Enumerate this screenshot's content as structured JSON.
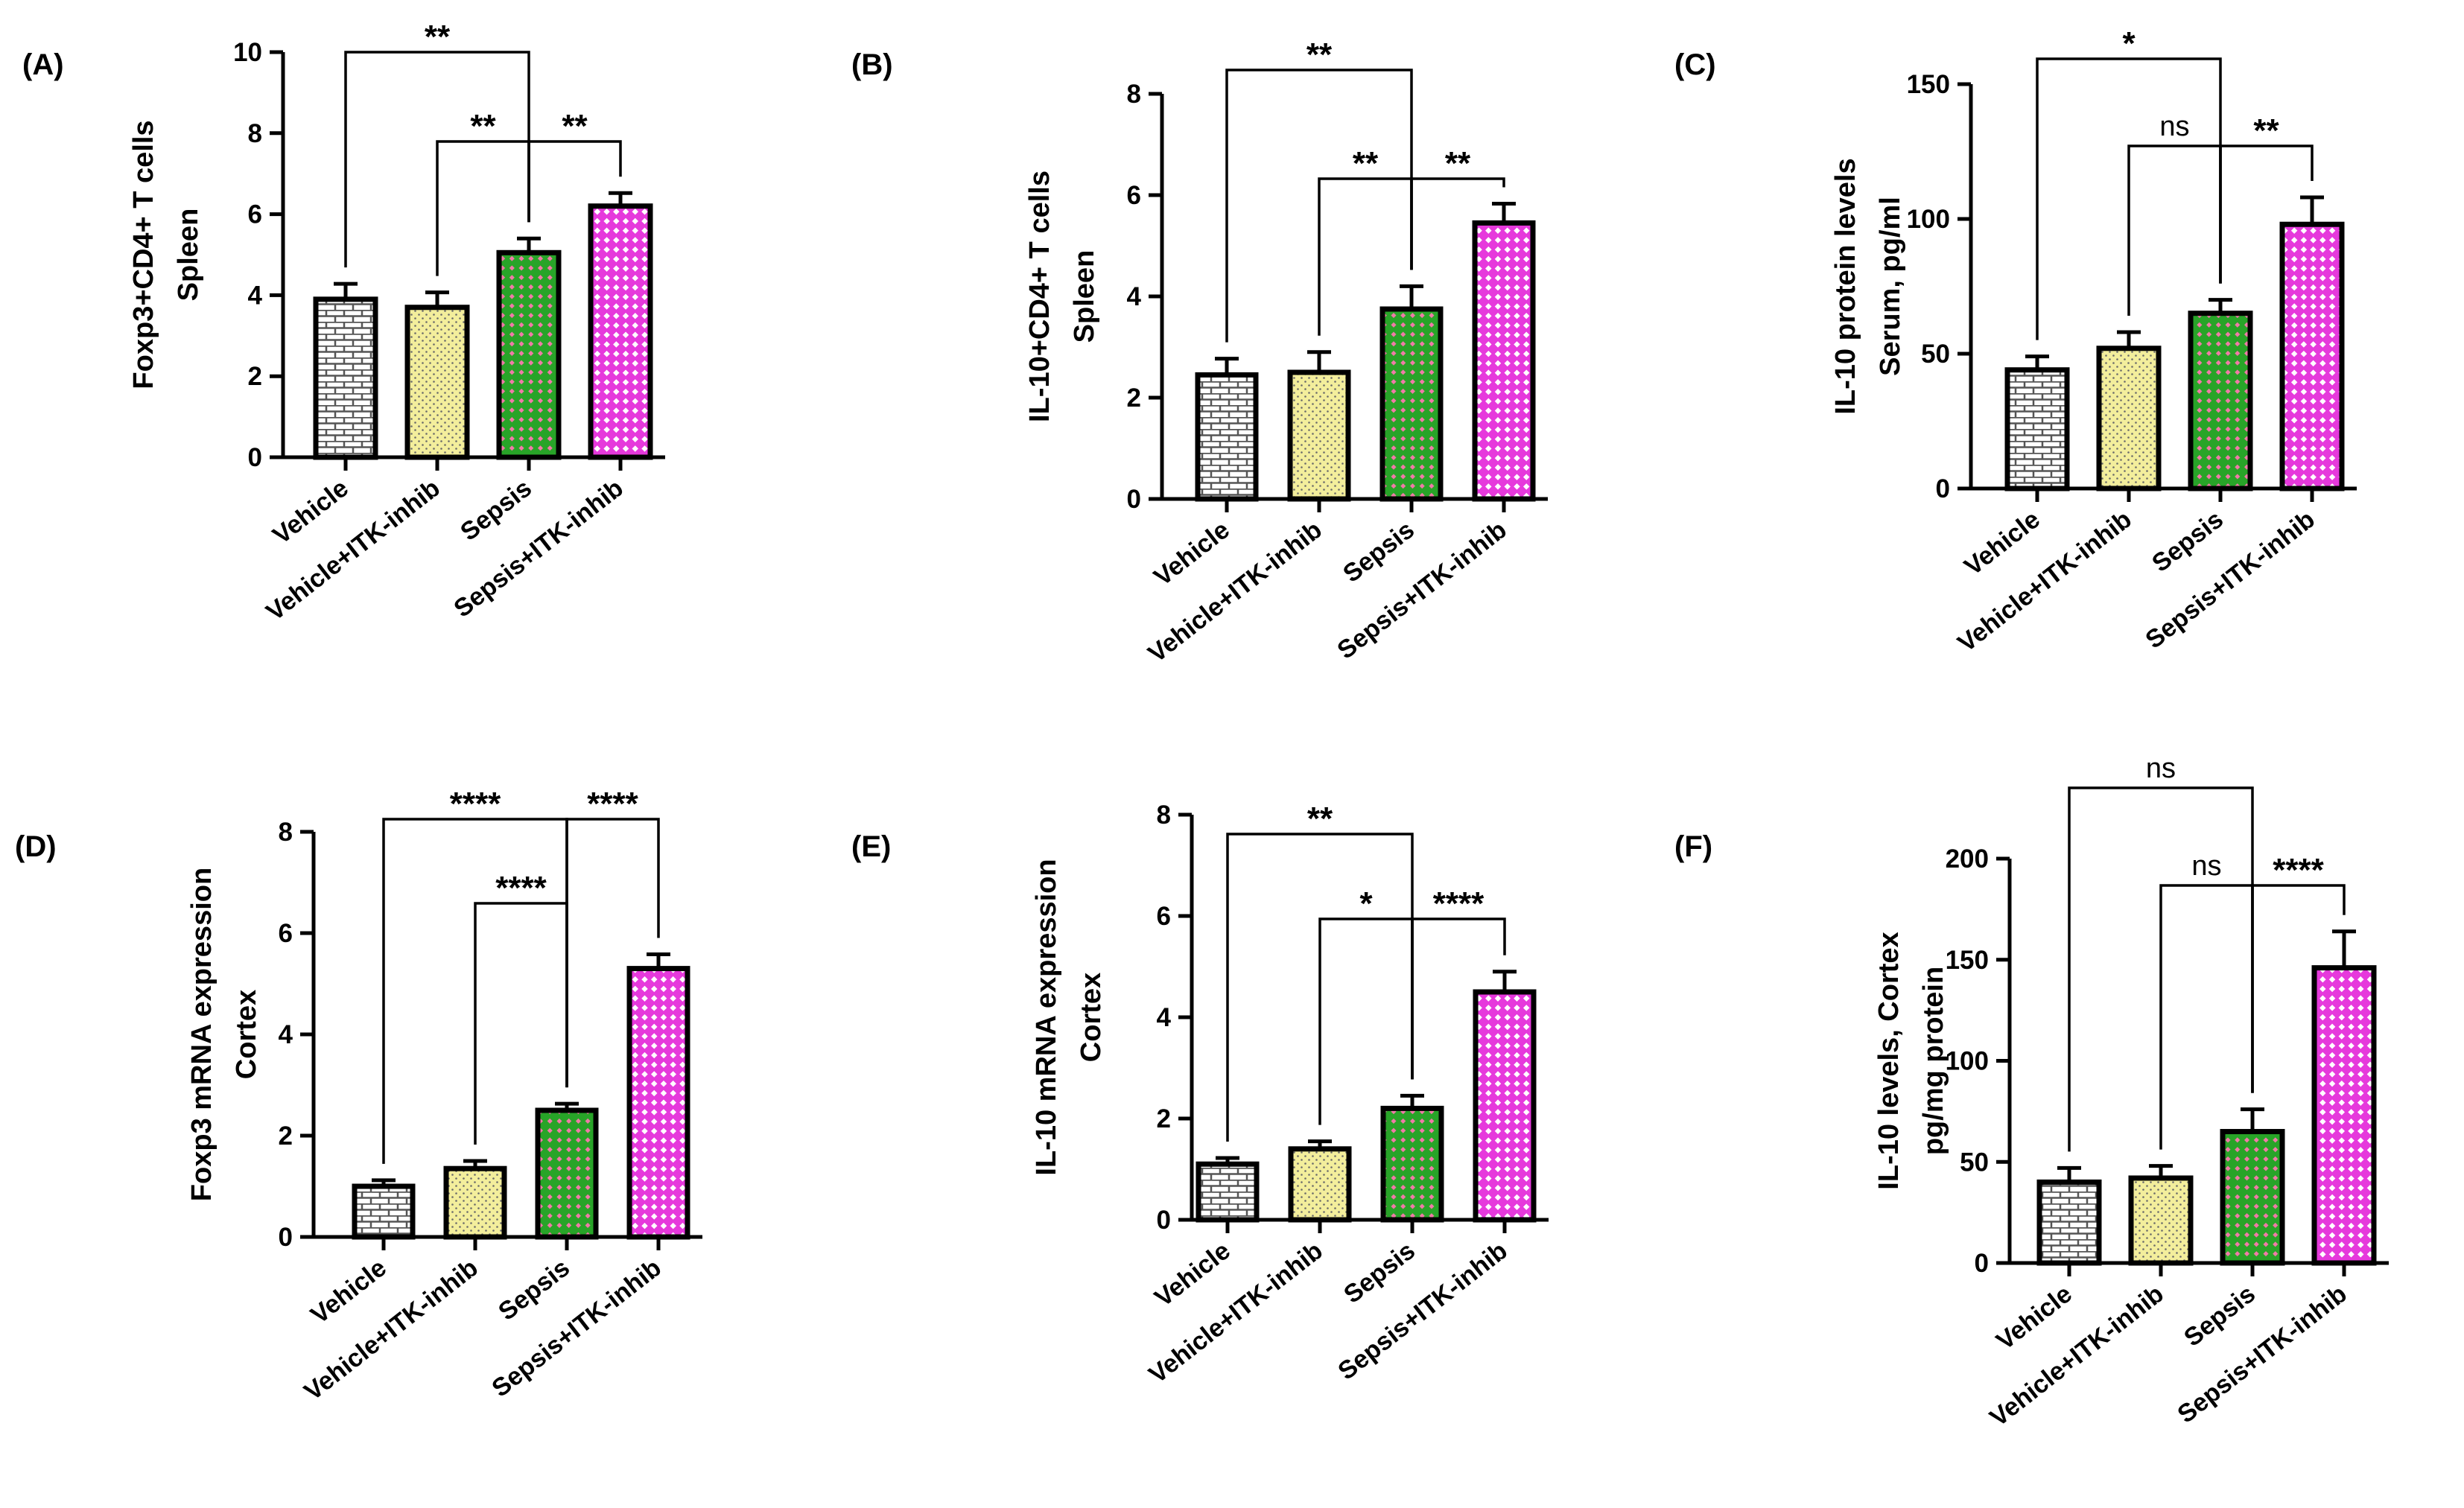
{
  "pattern_colors": {
    "Vehicle": {
      "base": "#ffffff",
      "ink": "#555555"
    },
    "Vehicle+ITK-inhib": {
      "base": "#f3ee9c",
      "ink": "#6a6a6a"
    },
    "Sepsis": {
      "base": "#28a428",
      "ink": "#f07aa8"
    },
    "Sepsis+ITK-inhib": {
      "base": "#e639dc",
      "ink": "#ffffff"
    }
  },
  "chart_data": [
    {
      "panel": "(A)",
      "type": "bar",
      "categories": [
        "Vehicle",
        "Vehicle+ITK-inhib",
        "Sepsis",
        "Sepsis+ITK-inhib"
      ],
      "values": [
        3.9,
        3.7,
        5.05,
        6.2
      ],
      "errors": [
        0.38,
        0.37,
        0.35,
        0.32
      ],
      "ylabel": [
        "Foxp3+CD4+ T cells",
        "Spleen"
      ],
      "ylim": [
        0,
        10
      ],
      "yticks": [
        "0",
        "2",
        "4",
        "6",
        "8",
        "10"
      ],
      "significance": [
        {
          "from": 0,
          "to": 2,
          "label": "**"
        },
        {
          "from": 1,
          "to": 2,
          "label": "**"
        },
        {
          "from": 2,
          "to": 3,
          "label": "**"
        }
      ]
    },
    {
      "panel": "(B)",
      "type": "bar",
      "categories": [
        "Vehicle",
        "Vehicle+ITK-inhib",
        "Sepsis",
        "Sepsis+ITK-inhib"
      ],
      "values": [
        2.45,
        2.5,
        3.75,
        5.45
      ],
      "errors": [
        0.32,
        0.4,
        0.45,
        0.38
      ],
      "ylabel": [
        "IL-10+CD4+ T cells",
        "Spleen"
      ],
      "ylim": [
        0,
        8
      ],
      "yticks": [
        "0",
        "2",
        "4",
        "6",
        "8"
      ],
      "significance": [
        {
          "from": 0,
          "to": 2,
          "label": "**"
        },
        {
          "from": 1,
          "to": 2,
          "label": "**"
        },
        {
          "from": 2,
          "to": 3,
          "label": "**"
        }
      ]
    },
    {
      "panel": "(C)",
      "type": "bar",
      "categories": [
        "Vehicle",
        "Vehicle+ITK-inhib",
        "Sepsis",
        "Sepsis+ITK-inhib"
      ],
      "values": [
        44,
        52,
        65,
        98
      ],
      "errors": [
        5,
        6,
        5,
        10
      ],
      "ylabel": [
        "IL-10 protein levels",
        "Serum, pg/ml"
      ],
      "ylim": [
        0,
        150
      ],
      "yticks": [
        "0",
        "50",
        "100",
        "150"
      ],
      "significance": [
        {
          "from": 0,
          "to": 2,
          "label": "*"
        },
        {
          "from": 1,
          "to": 2,
          "label": "ns"
        },
        {
          "from": 2,
          "to": 3,
          "label": "**"
        }
      ]
    },
    {
      "panel": "(D)",
      "type": "bar",
      "categories": [
        "Vehicle",
        "Vehicle+ITK-inhib",
        "Sepsis",
        "Sepsis+ITK-inhib"
      ],
      "values": [
        1.0,
        1.35,
        2.5,
        5.3
      ],
      "errors": [
        0.12,
        0.15,
        0.13,
        0.28
      ],
      "ylabel": [
        "Foxp3 mRNA expression",
        "Cortex"
      ],
      "ylim": [
        0,
        8
      ],
      "yticks": [
        "0",
        "2",
        "4",
        "6",
        "8"
      ],
      "significance": [
        {
          "from": 0,
          "to": 2,
          "label": "****"
        },
        {
          "from": 1,
          "to": 2,
          "label": "****"
        },
        {
          "from": 2,
          "to": 3,
          "label": "****"
        }
      ]
    },
    {
      "panel": "(E)",
      "type": "bar",
      "categories": [
        "Vehicle",
        "Vehicle+ITK-inhib",
        "Sepsis",
        "Sepsis+ITK-inhib"
      ],
      "values": [
        1.1,
        1.4,
        2.2,
        4.5
      ],
      "errors": [
        0.12,
        0.15,
        0.25,
        0.4
      ],
      "ylabel": [
        "IL-10 mRNA expression",
        "Cortex"
      ],
      "ylim": [
        0,
        8
      ],
      "yticks": [
        "0",
        "2",
        "4",
        "6",
        "8"
      ],
      "significance": [
        {
          "from": 0,
          "to": 2,
          "label": "**"
        },
        {
          "from": 1,
          "to": 2,
          "label": "*"
        },
        {
          "from": 2,
          "to": 3,
          "label": "****"
        }
      ]
    },
    {
      "panel": "(F)",
      "type": "bar",
      "categories": [
        "Vehicle",
        "Vehicle+ITK-inhib",
        "Sepsis",
        "Sepsis+ITK-inhib"
      ],
      "values": [
        40,
        42,
        65,
        146
      ],
      "errors": [
        7,
        6,
        11,
        18
      ],
      "ylabel": [
        "IL-10 levels, Cortex",
        "pg/mg protein"
      ],
      "ylim": [
        0,
        200
      ],
      "yticks": [
        "0",
        "50",
        "100",
        "150",
        "200"
      ],
      "significance": [
        {
          "from": 0,
          "to": 2,
          "label": "ns"
        },
        {
          "from": 1,
          "to": 2,
          "label": "ns"
        },
        {
          "from": 2,
          "to": 3,
          "label": "****"
        }
      ]
    }
  ]
}
